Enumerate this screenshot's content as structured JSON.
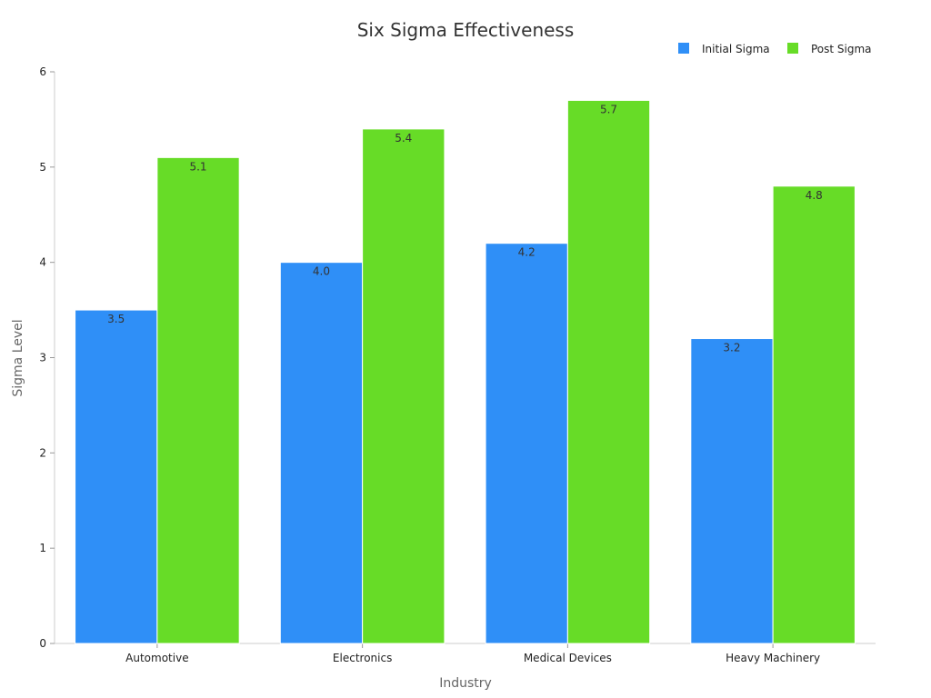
{
  "chart_data": {
    "type": "bar",
    "title": "Six Sigma Effectiveness",
    "xlabel": "Industry",
    "ylabel": "Sigma Level",
    "categories": [
      "Automotive",
      "Electronics",
      "Medical Devices",
      "Heavy Machinery"
    ],
    "series": [
      {
        "name": "Initial Sigma",
        "color": "#2f8ff7",
        "values": [
          3.5,
          4.0,
          4.2,
          3.2
        ]
      },
      {
        "name": "Post Sigma",
        "color": "#67dc27",
        "values": [
          5.1,
          5.4,
          5.7,
          4.8
        ]
      }
    ],
    "ylim": [
      0,
      6
    ],
    "yticks": [
      0,
      1,
      2,
      3,
      4,
      5,
      6
    ],
    "grid": false,
    "legend": "top-right",
    "data_labels": true
  }
}
